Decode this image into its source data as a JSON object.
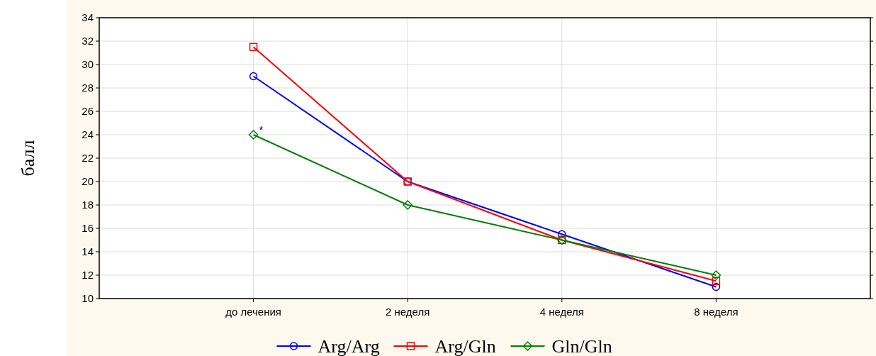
{
  "chart_data": {
    "type": "line",
    "ylabel": "балл",
    "categories": [
      "до лечения",
      "2 неделя",
      "4 неделя",
      "8 неделя"
    ],
    "series": [
      {
        "name": "Arg/Arg",
        "color": "#0000ff",
        "marker": "circle",
        "values": [
          29,
          20,
          15.5,
          11
        ]
      },
      {
        "name": "Arg/Gln",
        "color": "#ff0000",
        "marker": "square",
        "values": [
          31.5,
          20,
          15,
          11.5
        ]
      },
      {
        "name": "Gln/Gln",
        "color": "#008000",
        "marker": "diamond",
        "values": [
          24,
          18,
          15,
          12
        ]
      }
    ],
    "ylim": [
      10,
      34
    ],
    "yticks": [
      10,
      12,
      14,
      16,
      18,
      20,
      22,
      24,
      26,
      28,
      30,
      32,
      34
    ],
    "grid": true,
    "legend": "bottom",
    "line_style": "solid",
    "annotations": [
      {
        "text": "*",
        "x": "до лечения",
        "y": 24
      }
    ]
  }
}
